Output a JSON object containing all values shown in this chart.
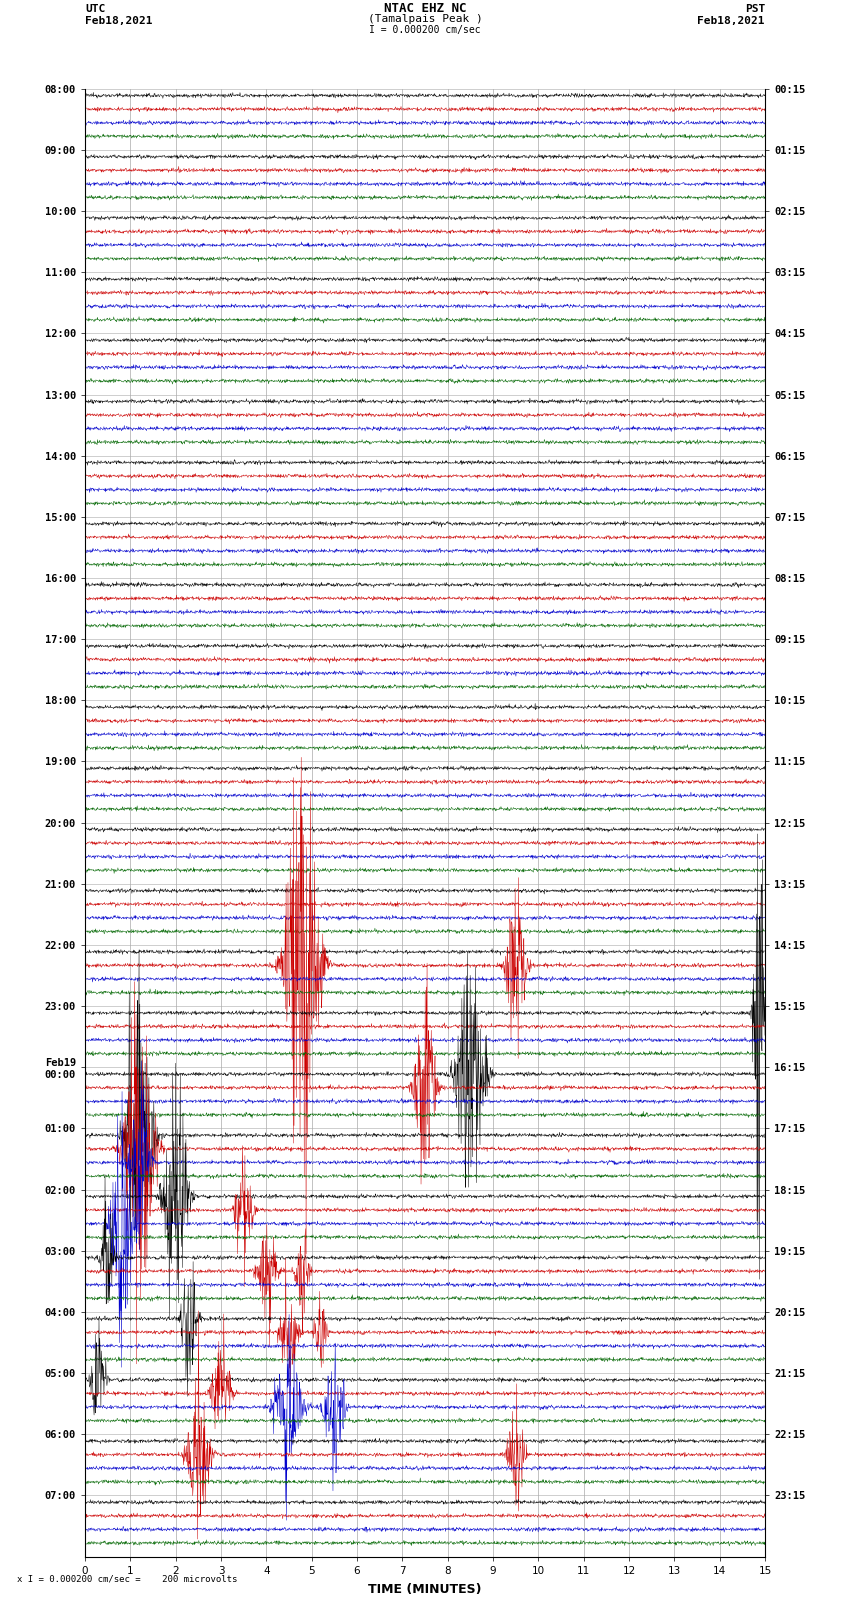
{
  "title_line1": "NTAC EHZ NC",
  "title_line2": "(Tamalpais Peak )",
  "scale_text": "I = 0.000200 cm/sec",
  "bottom_text": "x I = 0.000200 cm/sec =    200 microvolts",
  "utc_label": "UTC",
  "utc_date": "Feb18,2021",
  "pst_label": "PST",
  "pst_date": "Feb18,2021",
  "xlabel": "TIME (MINUTES)",
  "xmin": 0,
  "xmax": 15,
  "num_rows": 32,
  "traces_per_row": 4,
  "row_colors": [
    "#000000",
    "#cc0000",
    "#0000cc",
    "#006600"
  ],
  "utc_hour_labels": [
    "08:00",
    "09:00",
    "10:00",
    "11:00",
    "12:00",
    "13:00",
    "14:00",
    "15:00",
    "16:00",
    "17:00",
    "18:00",
    "19:00",
    "20:00",
    "21:00",
    "22:00",
    "23:00",
    "Feb19\n00:00",
    "01:00",
    "02:00",
    "03:00",
    "04:00",
    "05:00",
    "06:00",
    "07:00"
  ],
  "pst_hour_labels": [
    "00:15",
    "01:15",
    "02:15",
    "03:15",
    "04:15",
    "05:15",
    "06:15",
    "07:15",
    "08:15",
    "09:15",
    "10:15",
    "11:15",
    "12:15",
    "13:15",
    "14:15",
    "15:15",
    "16:15",
    "17:15",
    "18:15",
    "19:15",
    "20:15",
    "21:15",
    "22:15",
    "23:15"
  ],
  "background_color": "#ffffff",
  "grid_color": "#aaaaaa",
  "fig_width": 8.5,
  "fig_height": 16.13,
  "dpi": 100,
  "tick_label_size": 7.5,
  "title_size": 9,
  "label_size": 8
}
